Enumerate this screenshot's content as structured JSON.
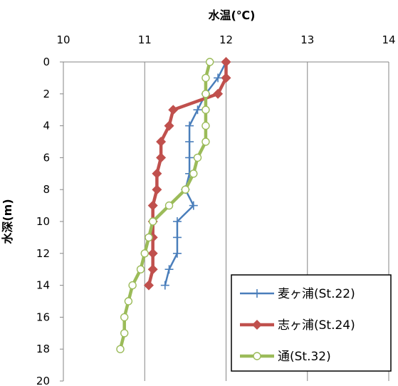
{
  "chart_data": {
    "type": "line",
    "xlabel": "水温(℃)",
    "ylabel": "水深(m)",
    "xlim": [
      10,
      14
    ],
    "ylim": [
      0,
      20
    ],
    "x_ticks": [
      "10",
      "11",
      "12",
      "13",
      "14"
    ],
    "y_ticks": [
      "0",
      "2",
      "4",
      "6",
      "8",
      "10",
      "12",
      "14",
      "16",
      "18",
      "20"
    ],
    "x_axis_position": "top",
    "y_axis_inverted": true,
    "grid": "vertical",
    "legend_position": "bottom-right",
    "series": [
      {
        "name": "麦ヶ浦(St.22)",
        "color": "#4a7ebb",
        "marker": "plus",
        "points": [
          {
            "x": 12.0,
            "y": 0
          },
          {
            "x": 11.9,
            "y": 1
          },
          {
            "x": 11.75,
            "y": 2
          },
          {
            "x": 11.65,
            "y": 3
          },
          {
            "x": 11.55,
            "y": 4
          },
          {
            "x": 11.55,
            "y": 5
          },
          {
            "x": 11.55,
            "y": 6
          },
          {
            "x": 11.55,
            "y": 7
          },
          {
            "x": 11.5,
            "y": 8
          },
          {
            "x": 11.6,
            "y": 9
          },
          {
            "x": 11.4,
            "y": 10
          },
          {
            "x": 11.4,
            "y": 11
          },
          {
            "x": 11.4,
            "y": 12
          },
          {
            "x": 11.3,
            "y": 13
          },
          {
            "x": 11.25,
            "y": 14
          }
        ]
      },
      {
        "name": "志ヶ浦(St.24)",
        "color": "#c0504d",
        "marker": "diamond",
        "points": [
          {
            "x": 12.0,
            "y": 0
          },
          {
            "x": 12.0,
            "y": 1
          },
          {
            "x": 11.9,
            "y": 2
          },
          {
            "x": 11.35,
            "y": 3
          },
          {
            "x": 11.3,
            "y": 4
          },
          {
            "x": 11.2,
            "y": 5
          },
          {
            "x": 11.2,
            "y": 6
          },
          {
            "x": 11.15,
            "y": 7
          },
          {
            "x": 11.15,
            "y": 8
          },
          {
            "x": 11.1,
            "y": 9
          },
          {
            "x": 11.1,
            "y": 10
          },
          {
            "x": 11.1,
            "y": 11
          },
          {
            "x": 11.1,
            "y": 12
          },
          {
            "x": 11.1,
            "y": 13
          },
          {
            "x": 11.05,
            "y": 14
          }
        ]
      },
      {
        "name": "通(St.32)",
        "color": "#9bbb59",
        "marker": "circle",
        "points": [
          {
            "x": 11.8,
            "y": 0
          },
          {
            "x": 11.75,
            "y": 1
          },
          {
            "x": 11.75,
            "y": 2
          },
          {
            "x": 11.75,
            "y": 3
          },
          {
            "x": 11.75,
            "y": 4
          },
          {
            "x": 11.75,
            "y": 5
          },
          {
            "x": 11.65,
            "y": 6
          },
          {
            "x": 11.6,
            "y": 7
          },
          {
            "x": 11.5,
            "y": 8
          },
          {
            "x": 11.3,
            "y": 9
          },
          {
            "x": 11.1,
            "y": 10
          },
          {
            "x": 11.05,
            "y": 11
          },
          {
            "x": 11.0,
            "y": 12
          },
          {
            "x": 10.95,
            "y": 13
          },
          {
            "x": 10.85,
            "y": 14
          },
          {
            "x": 10.8,
            "y": 15
          },
          {
            "x": 10.75,
            "y": 16
          },
          {
            "x": 10.75,
            "y": 17
          },
          {
            "x": 10.7,
            "y": 18
          }
        ]
      }
    ]
  }
}
